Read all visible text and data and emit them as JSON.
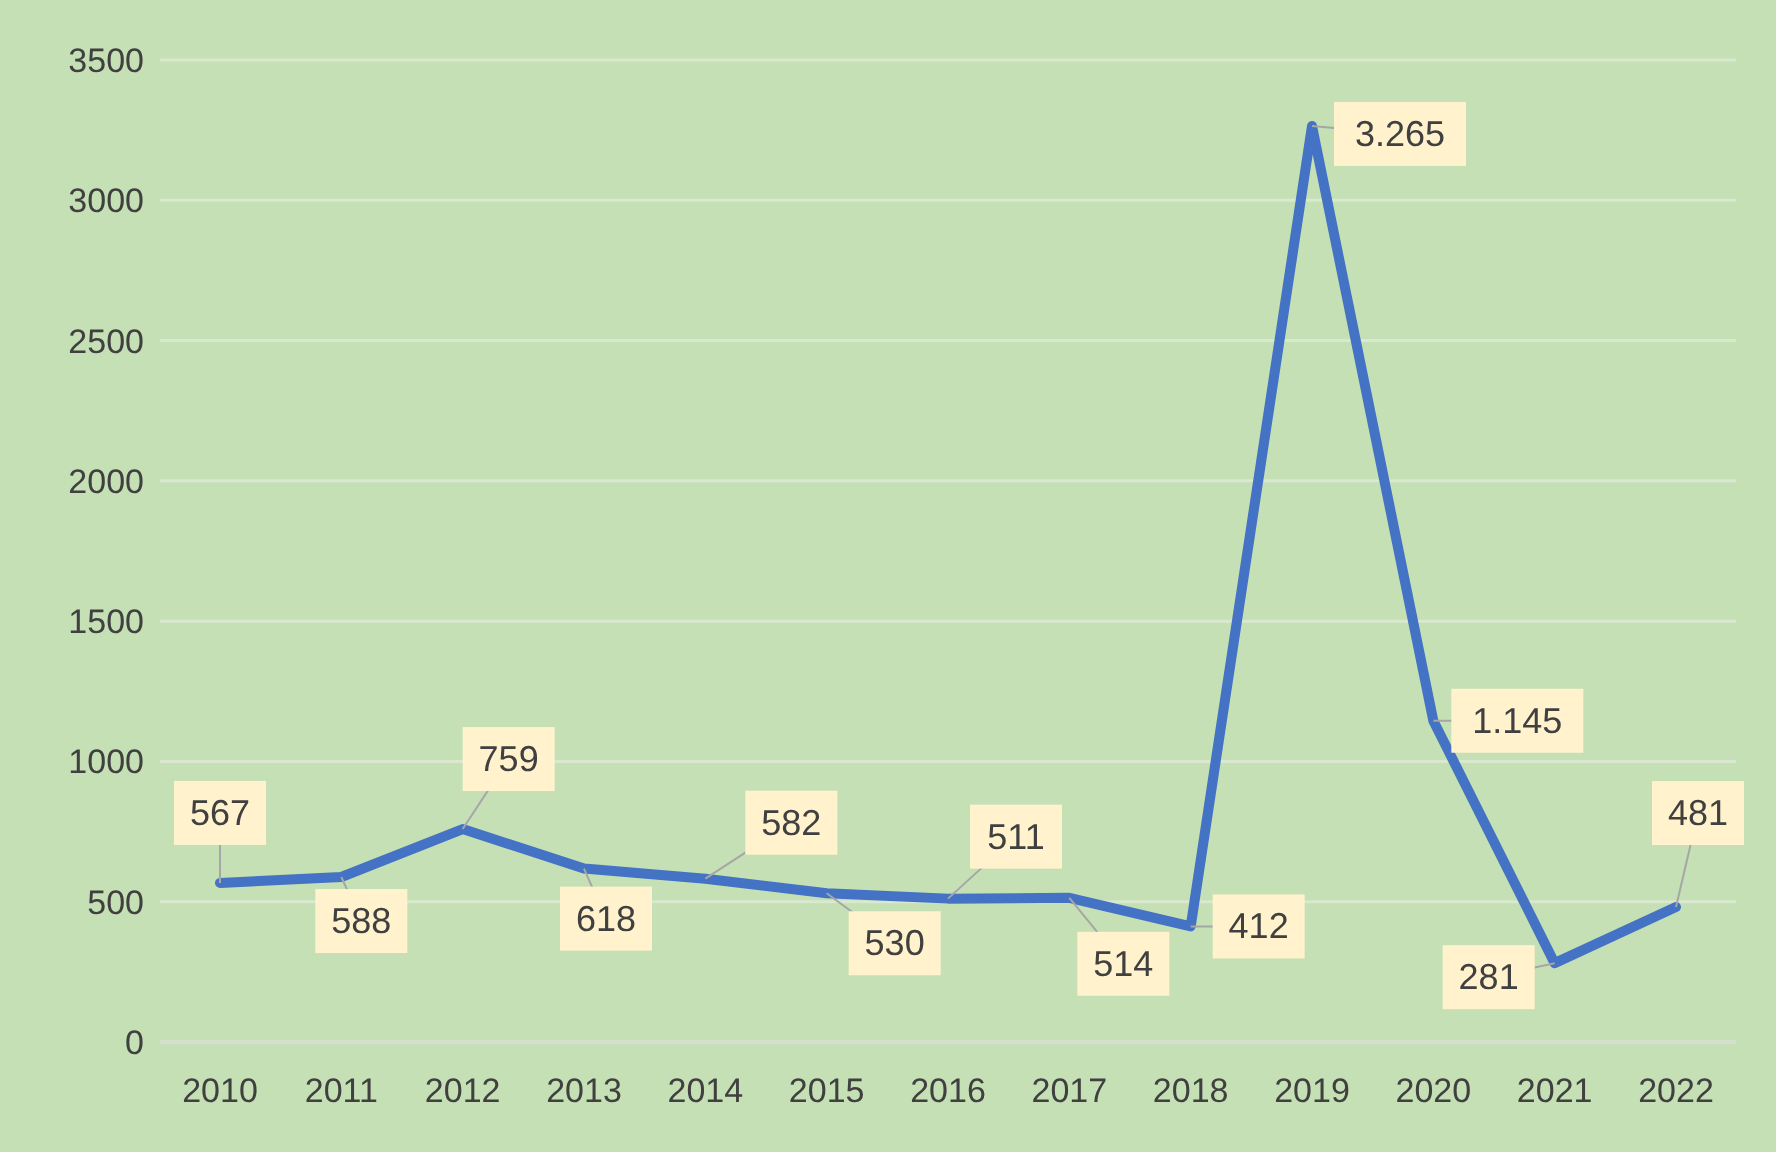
{
  "chart_data": {
    "type": "line",
    "categories": [
      "2010",
      "2011",
      "2012",
      "2013",
      "2014",
      "2015",
      "2016",
      "2017",
      "2018",
      "2019",
      "2020",
      "2021",
      "2022"
    ],
    "series": [
      {
        "color": "#4472c4",
        "values": [
          567,
          588,
          759,
          618,
          582,
          530,
          511,
          514,
          412,
          3265,
          1145,
          281,
          481
        ],
        "value_labels": [
          "567",
          "588",
          "759",
          "618",
          "582",
          "530",
          "511",
          "514",
          "412",
          "3.265",
          "1.145",
          "281",
          "481"
        ]
      }
    ],
    "ylim": [
      0,
      3500
    ],
    "yticks": [
      0,
      500,
      1000,
      1500,
      2000,
      2500,
      3000,
      3500
    ],
    "grid": "y",
    "legend": false,
    "marker": "none",
    "line_style": "solid"
  }
}
